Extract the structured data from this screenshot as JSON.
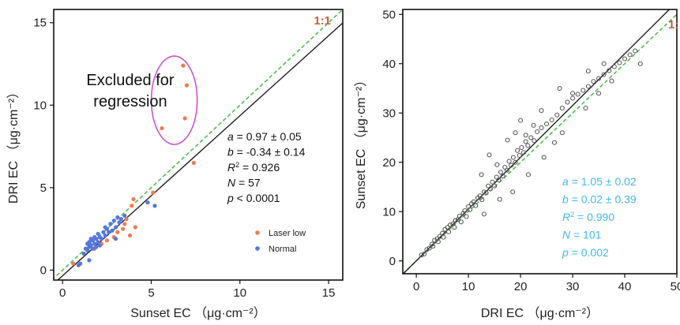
{
  "chart_data": [
    {
      "type": "scatter",
      "xlabel": "Sunset EC （μg·cm⁻²）",
      "ylabel": "DRI EC （μg·cm⁻²）",
      "xlim": [
        -0.5,
        15.8
      ],
      "ylim": [
        -0.6,
        15.8
      ],
      "x_ticks": [
        "0",
        "5",
        "10",
        "15"
      ],
      "y_ticks": [
        "0",
        "5",
        "10",
        "15"
      ],
      "one_to_one_label": "1:1",
      "annotation": "Excluded for\nregression",
      "stats": [
        {
          "var": "a",
          "text": " = 0.97 ± 0.05"
        },
        {
          "var": "b",
          "text": " = -0.34 ± 0.14"
        },
        {
          "var": "R",
          "sup": "2",
          "text": " = 0.926"
        },
        {
          "var": "N",
          "text": " = 57"
        },
        {
          "var": "p",
          "text": " < 0.0001"
        }
      ],
      "fit": {
        "slope": 0.97,
        "intercept": -0.34
      },
      "legend": [
        "Laser low",
        "Normal"
      ],
      "series": [
        {
          "name": "Laser low",
          "color": "#f07b52",
          "points": [
            [
              5.6,
              8.6
            ],
            [
              6.9,
              9.2
            ],
            [
              7.0,
              11.2
            ],
            [
              6.8,
              12.4
            ],
            [
              7.4,
              6.5
            ],
            [
              5.1,
              4.7
            ],
            [
              4.0,
              4.3
            ],
            [
              3.9,
              3.9
            ],
            [
              3.6,
              3.1
            ],
            [
              3.5,
              2.8
            ],
            [
              3.4,
              2.5
            ],
            [
              3.8,
              2.1
            ],
            [
              4.1,
              2.6
            ],
            [
              3.1,
              2.3
            ],
            [
              2.9,
              2.0
            ],
            [
              2.5,
              1.8
            ],
            [
              2.2,
              1.6
            ],
            [
              1.8,
              1.3
            ],
            [
              0.6,
              0.4
            ]
          ]
        },
        {
          "name": "Normal",
          "color": "#5577dd",
          "points": [
            [
              1.2,
              1.0
            ],
            [
              1.3,
              1.3
            ],
            [
              1.4,
              1.2
            ],
            [
              1.4,
              1.6
            ],
            [
              1.5,
              1.4
            ],
            [
              1.5,
              1.7
            ],
            [
              1.6,
              1.5
            ],
            [
              1.6,
              1.9
            ],
            [
              1.7,
              1.3
            ],
            [
              1.7,
              1.8
            ],
            [
              1.8,
              1.6
            ],
            [
              1.8,
              2.0
            ],
            [
              1.9,
              1.4
            ],
            [
              1.9,
              1.9
            ],
            [
              2.0,
              1.7
            ],
            [
              2.0,
              2.2
            ],
            [
              2.1,
              1.5
            ],
            [
              2.1,
              2.0
            ],
            [
              2.2,
              1.9
            ],
            [
              2.3,
              2.3
            ],
            [
              2.4,
              2.1
            ],
            [
              2.5,
              2.5
            ],
            [
              2.6,
              2.3
            ],
            [
              2.7,
              2.8
            ],
            [
              2.8,
              2.4
            ],
            [
              2.9,
              3.0
            ],
            [
              3.0,
              2.6
            ],
            [
              3.1,
              3.2
            ],
            [
              3.2,
              2.9
            ],
            [
              3.3,
              3.1
            ],
            [
              3.5,
              3.3
            ],
            [
              3.0,
              1.9
            ],
            [
              1.5,
              0.6
            ],
            [
              1.0,
              0.4
            ],
            [
              0.9,
              0.3
            ],
            [
              4.8,
              4.1
            ],
            [
              5.2,
              3.9
            ],
            [
              2.4,
              2.6
            ]
          ]
        }
      ],
      "colors": {
        "fit": "#222222",
        "one_to_one": "#55bb55",
        "ellipse": "#cc55cc",
        "stat_text": "#111111",
        "one_label": "#c0603a"
      }
    },
    {
      "type": "scatter",
      "xlabel": "DRI EC （μg·cm⁻²）",
      "ylabel": "Sunset EC （μg·cm⁻²）",
      "xlim": [
        -2.6,
        50
      ],
      "ylim": [
        -2.6,
        51
      ],
      "x_ticks": [
        "0",
        "10",
        "20",
        "30",
        "40",
        "50"
      ],
      "y_ticks": [
        "0",
        "10",
        "20",
        "30",
        "40",
        "50"
      ],
      "one_to_one_label": "1:",
      "stats": [
        {
          "var": "a",
          "text": " = 1.05 ± 0.02"
        },
        {
          "var": "b",
          "text": " = 0.02 ± 0.39"
        },
        {
          "var": "R",
          "sup": "2",
          "text": " = 0.990"
        },
        {
          "var": "N",
          "text": " = 101"
        },
        {
          "var": "p",
          "text": " = 0.002"
        }
      ],
      "fit": {
        "slope": 1.05,
        "intercept": 0.02
      },
      "series": [
        {
          "color": "#555555",
          "points": [
            [
              1,
              1.2
            ],
            [
              1.5,
              1.4
            ],
            [
              2,
              2.3
            ],
            [
              2.5,
              2.6
            ],
            [
              3,
              3.4
            ],
            [
              3.2,
              3.0
            ],
            [
              3.5,
              4.2
            ],
            [
              4,
              4.5
            ],
            [
              4.2,
              3.9
            ],
            [
              4.5,
              5.0
            ],
            [
              5,
              5.6
            ],
            [
              5.2,
              4.8
            ],
            [
              5.5,
              6.4
            ],
            [
              6,
              6.8
            ],
            [
              6.2,
              5.9
            ],
            [
              6.5,
              7.3
            ],
            [
              7,
              7.5
            ],
            [
              7.3,
              6.8
            ],
            [
              7.5,
              8.2
            ],
            [
              8,
              8.4
            ],
            [
              8.3,
              9.1
            ],
            [
              8.6,
              7.9
            ],
            [
              9,
              9.6
            ],
            [
              9.3,
              10.2
            ],
            [
              9.6,
              9.0
            ],
            [
              10,
              11.0
            ],
            [
              10.3,
              10.4
            ],
            [
              10.6,
              11.6
            ],
            [
              11,
              12.0
            ],
            [
              11.4,
              11.2
            ],
            [
              11.8,
              12.8
            ],
            [
              12.2,
              13.2
            ],
            [
              12.6,
              12.4
            ],
            [
              13,
              14.0
            ],
            [
              13.4,
              13.8
            ],
            [
              13.8,
              15.2
            ],
            [
              14.2,
              14.6
            ],
            [
              14.6,
              16.0
            ],
            [
              15,
              15.2
            ],
            [
              15.4,
              17.0
            ],
            [
              15.8,
              16.4
            ],
            [
              16.2,
              18.0
            ],
            [
              16.6,
              17.2
            ],
            [
              17,
              19.0
            ],
            [
              17.4,
              18.4
            ],
            [
              17.8,
              20.2
            ],
            [
              18.2,
              19.4
            ],
            [
              18.6,
              21.0
            ],
            [
              19,
              20.0
            ],
            [
              19.4,
              22.4
            ],
            [
              19.8,
              21.4
            ],
            [
              20.2,
              23.0
            ],
            [
              20.6,
              22.0
            ],
            [
              21,
              24.2
            ],
            [
              21.4,
              23.4
            ],
            [
              22,
              25.0
            ],
            [
              22.6,
              24.4
            ],
            [
              23.2,
              26.2
            ],
            [
              24,
              27.0
            ],
            [
              25,
              27.8
            ],
            [
              26,
              28.6
            ],
            [
              27,
              29.6
            ],
            [
              28,
              31.0
            ],
            [
              29,
              32.2
            ],
            [
              30,
              33.0
            ],
            [
              31,
              33.8
            ],
            [
              32,
              34.6
            ],
            [
              33,
              35.4
            ],
            [
              34,
              36.4
            ],
            [
              35,
              37.0
            ],
            [
              36,
              37.8
            ],
            [
              37,
              38.6
            ],
            [
              38,
              39.4
            ],
            [
              39,
              40.2
            ],
            [
              40,
              41.0
            ],
            [
              41,
              41.8
            ],
            [
              42,
              42.6
            ],
            [
              43,
              40.0
            ],
            [
              12.5,
              17.5
            ],
            [
              14,
              21.5
            ],
            [
              15.5,
              19.5
            ],
            [
              17.5,
              24.5
            ],
            [
              19,
              26.0
            ],
            [
              20,
              28.5
            ],
            [
              21,
              25.5
            ],
            [
              22.5,
              27.5
            ],
            [
              24,
              30.5
            ],
            [
              13,
              9.5
            ],
            [
              16,
              12.5
            ],
            [
              18.5,
              14.0
            ],
            [
              21.5,
              17.5
            ],
            [
              24.5,
              21.0
            ],
            [
              26.5,
              24.0
            ],
            [
              28,
              26.0
            ],
            [
              32.5,
              31.0
            ],
            [
              35,
              34.0
            ],
            [
              37.5,
              36.5
            ],
            [
              30,
              34.0
            ],
            [
              33,
              38.5
            ],
            [
              36,
              40.0
            ],
            [
              27.5,
              35.0
            ]
          ]
        }
      ],
      "colors": {
        "fit": "#222222",
        "one_to_one": "#55bb55",
        "stat_text": "#44b8ee",
        "one_label": "#c0603a"
      }
    }
  ]
}
